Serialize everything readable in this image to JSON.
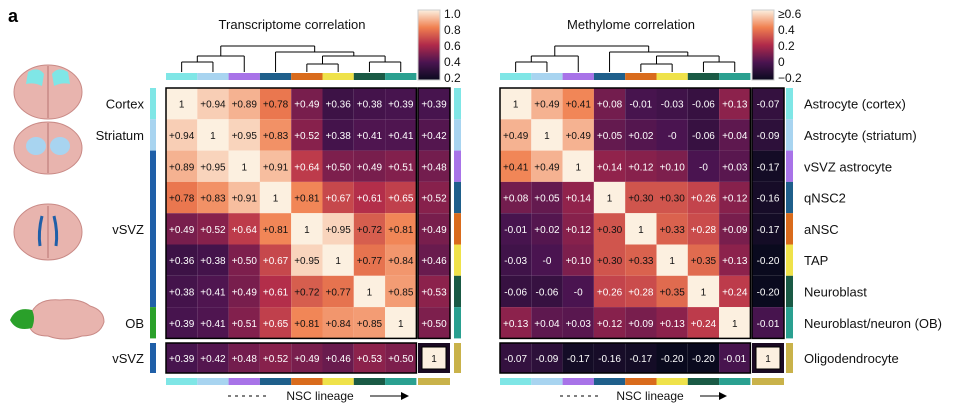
{
  "panel_label": "a",
  "colors": {
    "types": {
      "Astrocyte (cortex)": "#7fe6e6",
      "Astrocyte (striatum)": "#a8d4f0",
      "vSVZ astrocyte": "#a873e8",
      "qNSC2": "#1f5f8b",
      "aNSC": "#d96b1c",
      "TAP": "#efe24a",
      "Neuroblast": "#1a5a45",
      "Neuroblast/neuron (OB)": "#2aa090",
      "Oligodendrocyte": "#c9b24a"
    },
    "regions": {
      "Cortex": "#7fe6e6",
      "Striatum": "#a8d4f0",
      "vSVZ": "#1f5fa8",
      "OB": "#2aa02a",
      "vSVZ_oligo": "#1f5fa8"
    }
  },
  "chart_data": [
    {
      "type": "heatmap",
      "title": "Transcriptome correlation",
      "labels": [
        "Astrocyte (cortex)",
        "Astrocyte (striatum)",
        "vSVZ astrocyte",
        "qNSC2",
        "aNSC",
        "TAP",
        "Neuroblast",
        "Neuroblast/neuron (OB)"
      ],
      "values": [
        [
          1,
          0.94,
          0.89,
          0.78,
          0.49,
          0.36,
          0.38,
          0.39
        ],
        [
          0.94,
          1,
          0.95,
          0.83,
          0.52,
          0.38,
          0.41,
          0.41
        ],
        [
          0.89,
          0.95,
          1,
          0.91,
          0.64,
          0.5,
          0.49,
          0.51
        ],
        [
          0.78,
          0.83,
          0.91,
          1,
          0.81,
          0.67,
          0.61,
          0.65
        ],
        [
          0.49,
          0.52,
          0.64,
          0.81,
          1,
          0.95,
          0.72,
          0.81
        ],
        [
          0.36,
          0.38,
          0.5,
          0.67,
          0.95,
          1,
          0.77,
          0.84
        ],
        [
          0.38,
          0.41,
          0.49,
          0.61,
          0.72,
          0.77,
          1,
          0.85
        ],
        [
          0.39,
          0.41,
          0.51,
          0.65,
          0.81,
          0.84,
          0.85,
          1
        ]
      ],
      "display": [
        [
          "1",
          "+0.94",
          "+0.89",
          "+0.78",
          "+0.49",
          "+0.36",
          "+0.38",
          "+0.39"
        ],
        [
          "+0.94",
          "1",
          "+0.95",
          "+0.83",
          "+0.52",
          "+0.38",
          "+0.41",
          "+0.41"
        ],
        [
          "+0.89",
          "+0.95",
          "1",
          "+0.91",
          "+0.64",
          "+0.50",
          "+0.49",
          "+0.51"
        ],
        [
          "+0.78",
          "+0.83",
          "+0.91",
          "1",
          "+0.81",
          "+0.67",
          "+0.61",
          "+0.65"
        ],
        [
          "+0.49",
          "+0.52",
          "+0.64",
          "+0.81",
          "1",
          "+0.95",
          "+0.72",
          "+0.81"
        ],
        [
          "+0.36",
          "+0.38",
          "+0.50",
          "+0.67",
          "+0.95",
          "1",
          "+0.77",
          "+0.84"
        ],
        [
          "+0.38",
          "+0.41",
          "+0.49",
          "+0.61",
          "+0.72",
          "+0.77",
          "1",
          "+0.85"
        ],
        [
          "+0.39",
          "+0.41",
          "+0.51",
          "+0.65",
          "+0.81",
          "+0.84",
          "+0.85",
          "1"
        ]
      ],
      "oligo_column": [
        0.39,
        0.42,
        0.48,
        0.52,
        0.49,
        0.46,
        0.53,
        0.5
      ],
      "oligo_column_display": [
        "+0.39",
        "+0.42",
        "+0.48",
        "+0.52",
        "+0.49",
        "+0.46",
        "+0.53",
        "+0.50"
      ],
      "oligo_row": [
        0.39,
        0.42,
        0.48,
        0.52,
        0.49,
        0.46,
        0.53,
        0.5
      ],
      "oligo_row_display": [
        "+0.39",
        "+0.42",
        "+0.48",
        "+0.52",
        "+0.49",
        "+0.46",
        "+0.53",
        "+0.50"
      ],
      "oligo_self": "1",
      "colorbar": {
        "min": 0.2,
        "max": 1.0,
        "ticks": [
          "1.0",
          "0.8",
          "0.6",
          "0.4",
          "0.2"
        ]
      }
    },
    {
      "type": "heatmap",
      "title": "Methylome correlation",
      "labels": [
        "Astrocyte (cortex)",
        "Astrocyte (striatum)",
        "vSVZ astrocyte",
        "qNSC2",
        "aNSC",
        "TAP",
        "Neuroblast",
        "Neuroblast/neuron (OB)"
      ],
      "values": [
        [
          1,
          0.49,
          0.41,
          0.08,
          -0.01,
          -0.03,
          -0.06,
          0.13
        ],
        [
          0.49,
          1,
          0.49,
          0.05,
          0.02,
          0,
          -0.06,
          0.04
        ],
        [
          0.41,
          0.49,
          1,
          0.14,
          0.12,
          0.1,
          0,
          0.03
        ],
        [
          0.08,
          0.05,
          0.14,
          1,
          0.3,
          0.3,
          0.26,
          0.12
        ],
        [
          -0.01,
          0.02,
          0.12,
          0.3,
          1,
          0.33,
          0.28,
          0.09
        ],
        [
          -0.03,
          0,
          0.1,
          0.3,
          0.33,
          1,
          0.35,
          0.13
        ],
        [
          -0.06,
          -0.06,
          0,
          0.26,
          0.28,
          0.35,
          1,
          0.24
        ],
        [
          0.13,
          0.04,
          0.03,
          0.12,
          0.09,
          0.13,
          0.24,
          1
        ]
      ],
      "display": [
        [
          "1",
          "+0.49",
          "+0.41",
          "+0.08",
          "-0.01",
          "-0.03",
          "-0.06",
          "+0.13"
        ],
        [
          "+0.49",
          "1",
          "+0.49",
          "+0.05",
          "+0.02",
          "-0",
          "-0.06",
          "+0.04"
        ],
        [
          "+0.41",
          "+0.49",
          "1",
          "+0.14",
          "+0.12",
          "+0.10",
          "-0",
          "+0.03"
        ],
        [
          "+0.08",
          "+0.05",
          "+0.14",
          "1",
          "+0.30",
          "+0.30",
          "+0.26",
          "+0.12"
        ],
        [
          "-0.01",
          "+0.02",
          "+0.12",
          "+0.30",
          "1",
          "+0.33",
          "+0.28",
          "+0.09"
        ],
        [
          "-0.03",
          "-0",
          "+0.10",
          "+0.30",
          "+0.33",
          "1",
          "+0.35",
          "+0.13"
        ],
        [
          "-0.06",
          "-0.06",
          "-0",
          "+0.26",
          "+0.28",
          "+0.35",
          "1",
          "+0.24"
        ],
        [
          "+0.13",
          "+0.04",
          "+0.03",
          "+0.12",
          "+0.09",
          "+0.13",
          "+0.24",
          "1"
        ]
      ],
      "oligo_column": [
        -0.07,
        -0.09,
        -0.17,
        -0.16,
        -0.17,
        -0.2,
        -0.2,
        -0.01
      ],
      "oligo_column_display": [
        "-0.07",
        "-0.09",
        "-0.17",
        "-0.16",
        "-0.17",
        "-0.20",
        "-0.20",
        "-0.01"
      ],
      "oligo_row": [
        -0.07,
        -0.09,
        -0.17,
        -0.16,
        -0.17,
        -0.2,
        -0.2,
        -0.01
      ],
      "oligo_row_display": [
        "-0.07",
        "-0.09",
        "-0.17",
        "-0.16",
        "-0.17",
        "-0.20",
        "-0.20",
        "-0.01"
      ],
      "oligo_self": "1",
      "colorbar": {
        "min": -0.2,
        "max": 0.6,
        "ticks": [
          "≥0.6",
          "0.4",
          "0.2",
          "0",
          "−0.2"
        ]
      }
    }
  ],
  "region_labels": [
    "Cortex",
    "Striatum",
    "vSVZ",
    "OB",
    "vSVZ"
  ],
  "right_labels": [
    "Astrocyte (cortex)",
    "Astrocyte (striatum)",
    "vSVZ astrocyte",
    "qNSC2",
    "aNSC",
    "TAP",
    "Neuroblast",
    "Neuroblast/neuron (OB)",
    "Oligodendrocyte"
  ],
  "lineage_label": "NSC lineage"
}
